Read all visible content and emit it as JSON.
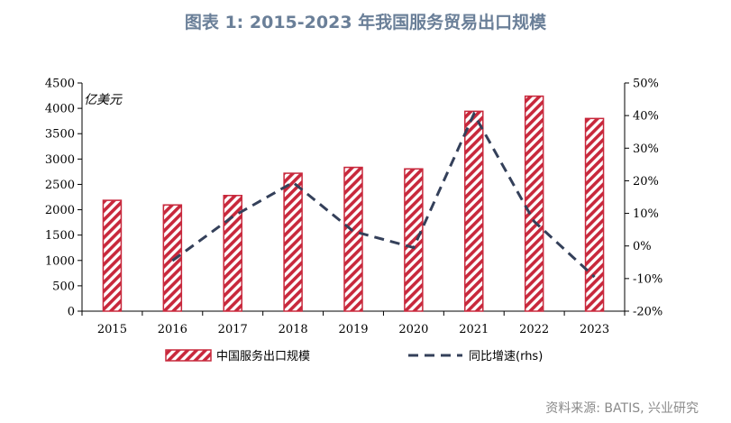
{
  "title": "图表 1:  2015-2023 年我国服务贸易出口规模",
  "source": "资料来源: BATIS, 兴业研究",
  "colors": {
    "bar_stroke": "#c8283c",
    "bar_hatch": "#c8283c",
    "line": "#34405a",
    "title": "#6a7f98"
  },
  "chart_data": {
    "type": "bar",
    "categories": [
      "2015",
      "2016",
      "2017",
      "2018",
      "2019",
      "2020",
      "2021",
      "2022",
      "2023"
    ],
    "series": [
      {
        "name": "中国服务出口规模",
        "axis": "left",
        "type": "bar",
        "values": [
          2186,
          2095,
          2281,
          2720,
          2836,
          2806,
          3942,
          4240,
          3800
        ]
      },
      {
        "name": "同比增速(rhs)",
        "axis": "right",
        "type": "line",
        "style": "dashed",
        "values": [
          null,
          -4.5,
          9.0,
          19.5,
          4.5,
          -0.5,
          40.5,
          7.5,
          -9.5
        ]
      }
    ],
    "y_left": {
      "unit": "亿美元",
      "ylim": [
        0,
        4500
      ],
      "ticks": [
        "0",
        "500",
        "1000",
        "1500",
        "2000",
        "2500",
        "3000",
        "3500",
        "4000",
        "4500"
      ]
    },
    "y_right": {
      "ylim": [
        -20,
        50
      ],
      "ticks": [
        "-20%",
        "-10%",
        "0%",
        "10%",
        "20%",
        "30%",
        "40%",
        "50%"
      ]
    },
    "grid": false,
    "legend_position": "bottom"
  }
}
